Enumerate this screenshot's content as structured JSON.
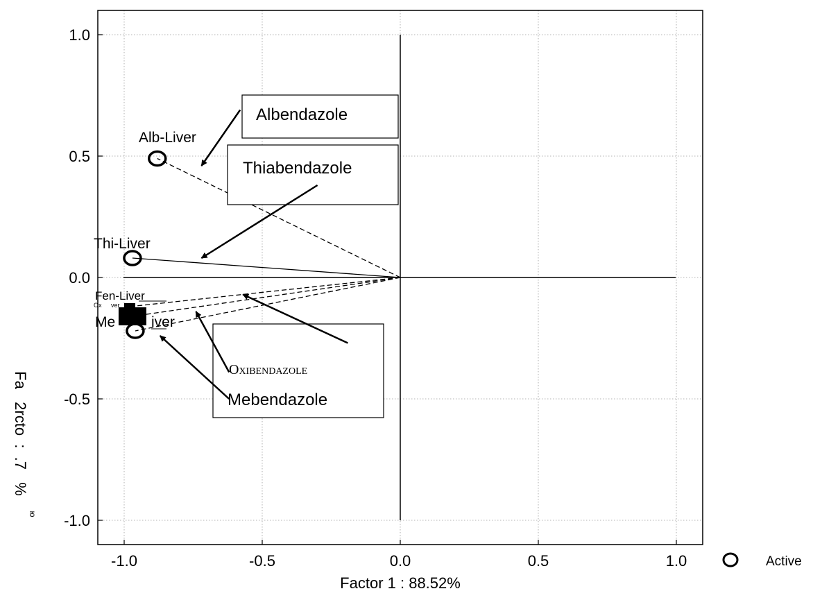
{
  "chart_data": {
    "type": "scatter",
    "title": "",
    "xlabel": "Factor 1 : 88.52%",
    "ylabel": "Fa   2rcto  :  .7   %",
    "ylabel_fragment": "ю",
    "xlim": [
      -1.1,
      1.1
    ],
    "ylim": [
      -1.1,
      1.1
    ],
    "xticks": [
      -1.0,
      -0.5,
      0.0,
      0.5,
      1.0
    ],
    "yticks": [
      1.0,
      0.5,
      0.0,
      -0.5,
      -1.0
    ],
    "xtick_labels": [
      "-1.0",
      "-0.5",
      "0.0",
      "0.5",
      "1.0"
    ],
    "ytick_labels": [
      "1.0",
      "0.5",
      "0.0",
      "-0.5",
      "-1.0"
    ],
    "grid": true,
    "legend": {
      "position": "bottom-right",
      "entries": [
        {
          "marker": "circle",
          "label": "Active"
        }
      ]
    },
    "points": [
      {
        "label": "Alb-Liver",
        "x": -0.88,
        "y": 0.49,
        "marker": "circle",
        "line": "dashed"
      },
      {
        "label": "Thi-Liver",
        "x": -0.97,
        "y": 0.08,
        "marker": "circle",
        "line": "solid"
      },
      {
        "label": "Fen-Liver",
        "x": -0.98,
        "y": -0.12,
        "marker": "square",
        "line": "dashed"
      },
      {
        "label": "Oxi-Liver",
        "x": -0.97,
        "y": -0.16,
        "marker": "square",
        "line": "dashed"
      },
      {
        "label": "Meb-Liver",
        "x": -0.96,
        "y": -0.22,
        "marker": "circle",
        "line": "dashed"
      }
    ],
    "point_labels": [
      {
        "text": "Alb-Liver",
        "size": "normal"
      },
      {
        "text": "Thi-Liver",
        "size": "normal"
      },
      {
        "text": "Fen-Liver",
        "size": "small"
      },
      {
        "text": "Ox",
        "size": "tiny"
      },
      {
        "text": "ver",
        "size": "tiny"
      },
      {
        "text": "Me",
        "size": "normal"
      },
      {
        "text": "iver",
        "size": "normal"
      }
    ],
    "annotations": [
      {
        "text": "Albendazole",
        "style": "sans",
        "x": -0.55,
        "y": 0.66,
        "arrow_from": [
          -0.58,
          0.69
        ],
        "arrow_to": [
          -0.72,
          0.46
        ]
      },
      {
        "text": "Thiabendazole",
        "style": "sans",
        "x": -0.57,
        "y": 0.45,
        "arrow_from": [
          -0.3,
          0.38
        ],
        "arrow_to": [
          -0.72,
          0.08
        ]
      },
      {
        "text": "Oxibendazole",
        "style": "serif-smallcaps",
        "x": -0.62,
        "y": -0.38,
        "arrow_from": [
          -0.62,
          -0.39
        ],
        "arrow_to": [
          -0.74,
          -0.14
        ]
      },
      {
        "text": "Mebendazole",
        "style": "sans",
        "x": -0.62,
        "y": -0.5,
        "arrow_from": [
          -0.62,
          -0.5
        ],
        "arrow_to": [
          -0.87,
          -0.24
        ]
      },
      {
        "text": "",
        "style": "arrow-only",
        "arrow_from": [
          -0.19,
          -0.27
        ],
        "arrow_to": [
          -0.57,
          -0.07
        ]
      }
    ]
  }
}
